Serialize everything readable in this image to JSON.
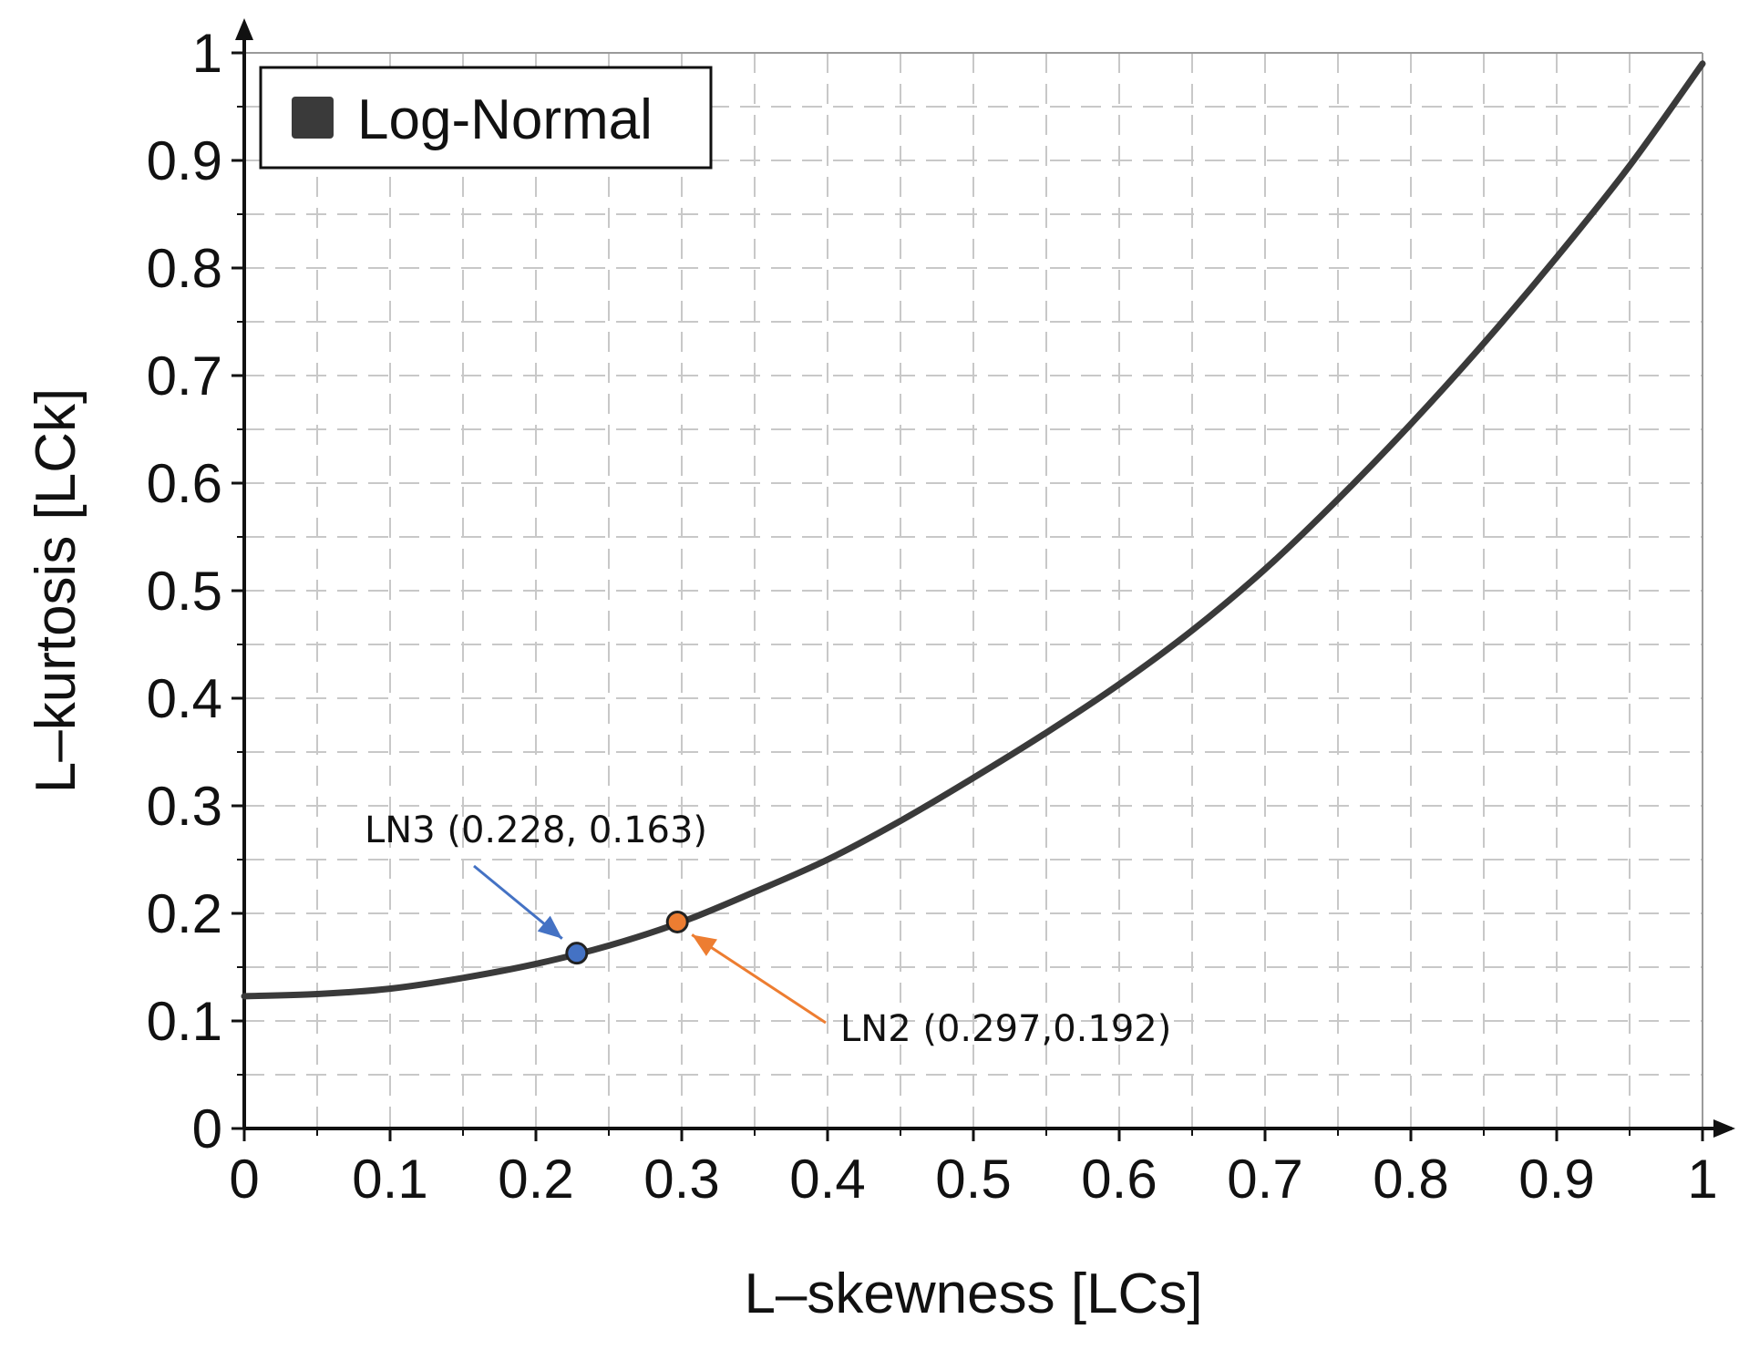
{
  "chart_data": {
    "type": "line",
    "xlabel": "L–skewness [LCs]",
    "ylabel": "L–kurtosis [LCk]",
    "xlim": [
      0,
      1
    ],
    "ylim": [
      0,
      1
    ],
    "x_ticks": [
      "0",
      "0.1",
      "0.2",
      "0.3",
      "0.4",
      "0.5",
      "0.6",
      "0.7",
      "0.8",
      "0.9",
      "1"
    ],
    "y_ticks": [
      "0",
      "0.1",
      "0.2",
      "0.3",
      "0.4",
      "0.5",
      "0.6",
      "0.7",
      "0.8",
      "0.9",
      "1"
    ],
    "grid": true,
    "grid_style": "dashed",
    "legend": {
      "placement": "top-left",
      "entries": [
        "Log-Normal"
      ]
    },
    "series": [
      {
        "name": "Log-Normal",
        "color": "#3a3a3a",
        "x": [
          0,
          0.05,
          0.1,
          0.15,
          0.2,
          0.25,
          0.3,
          0.35,
          0.4,
          0.45,
          0.5,
          0.55,
          0.6,
          0.65,
          0.7,
          0.75,
          0.8,
          0.85,
          0.9,
          0.95,
          1.0
        ],
        "y": [
          0.123,
          0.125,
          0.13,
          0.14,
          0.153,
          0.17,
          0.192,
          0.22,
          0.25,
          0.286,
          0.326,
          0.368,
          0.413,
          0.463,
          0.52,
          0.585,
          0.655,
          0.73,
          0.81,
          0.895,
          0.99
        ]
      }
    ],
    "points": [
      {
        "label": "LN3 (0.228, 0.163)",
        "x": 0.228,
        "y": 0.163,
        "color": "#4472c4"
      },
      {
        "label": "LN2 (0.297,0.192)",
        "x": 0.297,
        "y": 0.192,
        "color": "#ed7d31"
      }
    ]
  }
}
